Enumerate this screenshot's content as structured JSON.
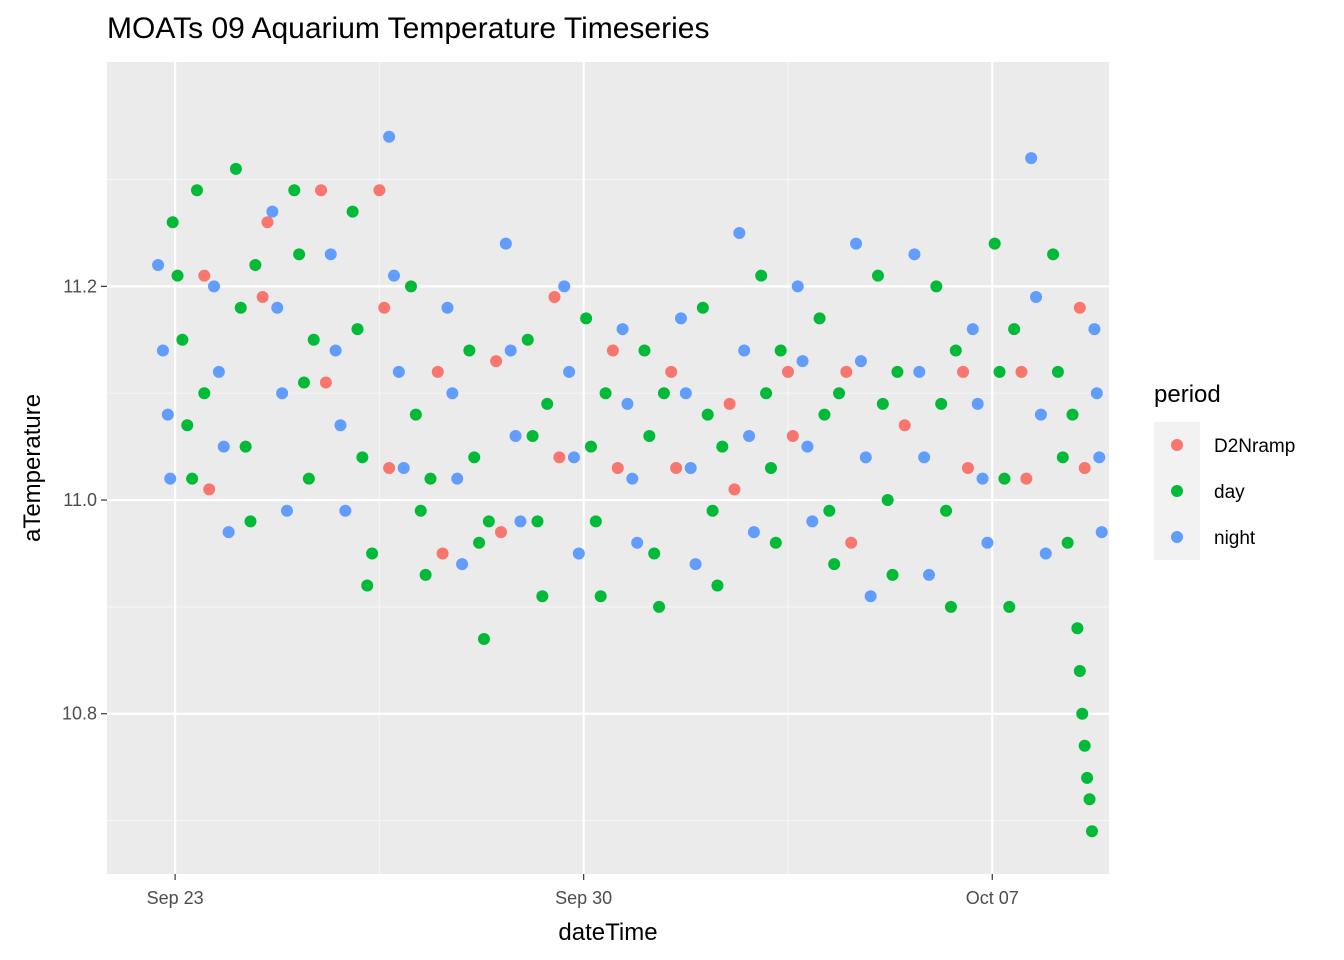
{
  "chart_data": {
    "type": "scatter",
    "title": "MOATs 09 Aquarium Temperature Timeseries",
    "xlabel": "dateTime",
    "ylabel": "aTemperature",
    "x_range": [
      "2021-09-21T20:00",
      "2021-10-09T00:00"
    ],
    "ylim": [
      10.65,
      11.41
    ],
    "x_ticks": [
      {
        "label": "Sep 23",
        "date": "2021-09-23"
      },
      {
        "label": "Sep 30",
        "date": "2021-09-30"
      },
      {
        "label": "Oct 07",
        "date": "2021-10-07"
      }
    ],
    "y_ticks": [
      10.8,
      11.0,
      11.2
    ],
    "grid": true,
    "legend": {
      "title": "period",
      "position": "right"
    },
    "series": [
      {
        "name": "D2Nramp",
        "color": "#F8766D",
        "points": [
          [
            "2021-09-23T12:00",
            11.21
          ],
          [
            "2021-09-23T14:00",
            11.01
          ],
          [
            "2021-09-24T12:00",
            11.19
          ],
          [
            "2021-09-24T14:00",
            11.26
          ],
          [
            "2021-09-25T12:00",
            11.29
          ],
          [
            "2021-09-25T14:00",
            11.11
          ],
          [
            "2021-09-26T12:00",
            11.29
          ],
          [
            "2021-09-26T14:00",
            11.18
          ],
          [
            "2021-09-26T16:00",
            11.03
          ],
          [
            "2021-09-27T12:00",
            11.12
          ],
          [
            "2021-09-27T14:00",
            10.95
          ],
          [
            "2021-09-28T12:00",
            11.13
          ],
          [
            "2021-09-28T14:00",
            10.97
          ],
          [
            "2021-09-29T12:00",
            11.19
          ],
          [
            "2021-09-29T14:00",
            11.04
          ],
          [
            "2021-09-30T12:00",
            11.14
          ],
          [
            "2021-09-30T14:00",
            11.03
          ],
          [
            "2021-10-01T12:00",
            11.12
          ],
          [
            "2021-10-01T14:00",
            11.03
          ],
          [
            "2021-10-02T12:00",
            11.09
          ],
          [
            "2021-10-02T14:00",
            11.01
          ],
          [
            "2021-10-03T12:00",
            11.12
          ],
          [
            "2021-10-03T14:00",
            11.06
          ],
          [
            "2021-10-04T12:00",
            11.12
          ],
          [
            "2021-10-04T14:00",
            10.96
          ],
          [
            "2021-10-05T12:00",
            11.07
          ],
          [
            "2021-10-06T12:00",
            11.12
          ],
          [
            "2021-10-06T14:00",
            11.03
          ],
          [
            "2021-10-07T12:00",
            11.12
          ],
          [
            "2021-10-07T14:00",
            11.02
          ],
          [
            "2021-10-08T12:00",
            11.18
          ],
          [
            "2021-10-08T14:00",
            11.03
          ]
        ]
      },
      {
        "name": "day",
        "color": "#00BA38",
        "points": [
          [
            "2021-09-22T23:00",
            11.26
          ],
          [
            "2021-09-23T01:00",
            11.21
          ],
          [
            "2021-09-23T03:00",
            11.15
          ],
          [
            "2021-09-23T05:00",
            11.07
          ],
          [
            "2021-09-23T07:00",
            11.02
          ],
          [
            "2021-09-23T09:00",
            11.29
          ],
          [
            "2021-09-23T12:00",
            11.1
          ],
          [
            "2021-09-24T01:00",
            11.31
          ],
          [
            "2021-09-24T03:00",
            11.18
          ],
          [
            "2021-09-24T05:00",
            11.05
          ],
          [
            "2021-09-24T07:00",
            10.98
          ],
          [
            "2021-09-24T09:00",
            11.22
          ],
          [
            "2021-09-25T01:00",
            11.29
          ],
          [
            "2021-09-25T03:00",
            11.23
          ],
          [
            "2021-09-25T05:00",
            11.11
          ],
          [
            "2021-09-25T07:00",
            11.02
          ],
          [
            "2021-09-25T09:00",
            11.15
          ],
          [
            "2021-09-26T01:00",
            11.27
          ],
          [
            "2021-09-26T03:00",
            11.16
          ],
          [
            "2021-09-26T05:00",
            11.04
          ],
          [
            "2021-09-26T07:00",
            10.92
          ],
          [
            "2021-09-26T09:00",
            10.95
          ],
          [
            "2021-09-27T01:00",
            11.2
          ],
          [
            "2021-09-27T03:00",
            11.08
          ],
          [
            "2021-09-27T05:00",
            10.99
          ],
          [
            "2021-09-27T07:00",
            10.93
          ],
          [
            "2021-09-27T09:00",
            11.02
          ],
          [
            "2021-09-28T01:00",
            11.14
          ],
          [
            "2021-09-28T03:00",
            11.04
          ],
          [
            "2021-09-28T05:00",
            10.96
          ],
          [
            "2021-09-28T07:00",
            10.87
          ],
          [
            "2021-09-28T09:00",
            10.98
          ],
          [
            "2021-09-29T01:00",
            11.15
          ],
          [
            "2021-09-29T03:00",
            11.06
          ],
          [
            "2021-09-29T05:00",
            10.98
          ],
          [
            "2021-09-29T07:00",
            10.91
          ],
          [
            "2021-09-29T09:00",
            11.09
          ],
          [
            "2021-09-30T01:00",
            11.17
          ],
          [
            "2021-09-30T03:00",
            11.05
          ],
          [
            "2021-09-30T05:00",
            10.98
          ],
          [
            "2021-09-30T07:00",
            10.91
          ],
          [
            "2021-09-30T09:00",
            11.1
          ],
          [
            "2021-10-01T01:00",
            11.14
          ],
          [
            "2021-10-01T03:00",
            11.06
          ],
          [
            "2021-10-01T05:00",
            10.95
          ],
          [
            "2021-10-01T07:00",
            10.9
          ],
          [
            "2021-10-01T09:00",
            11.1
          ],
          [
            "2021-10-02T01:00",
            11.18
          ],
          [
            "2021-10-02T03:00",
            11.08
          ],
          [
            "2021-10-02T05:00",
            10.99
          ],
          [
            "2021-10-02T07:00",
            10.92
          ],
          [
            "2021-10-02T09:00",
            11.05
          ],
          [
            "2021-10-03T01:00",
            11.21
          ],
          [
            "2021-10-03T03:00",
            11.1
          ],
          [
            "2021-10-03T05:00",
            11.03
          ],
          [
            "2021-10-03T07:00",
            10.96
          ],
          [
            "2021-10-03T09:00",
            11.14
          ],
          [
            "2021-10-04T01:00",
            11.17
          ],
          [
            "2021-10-04T03:00",
            11.08
          ],
          [
            "2021-10-04T05:00",
            10.99
          ],
          [
            "2021-10-04T07:00",
            10.94
          ],
          [
            "2021-10-04T09:00",
            11.1
          ],
          [
            "2021-10-05T01:00",
            11.21
          ],
          [
            "2021-10-05T03:00",
            11.09
          ],
          [
            "2021-10-05T05:00",
            11.0
          ],
          [
            "2021-10-05T07:00",
            10.93
          ],
          [
            "2021-10-05T09:00",
            11.12
          ],
          [
            "2021-10-06T01:00",
            11.2
          ],
          [
            "2021-10-06T03:00",
            11.09
          ],
          [
            "2021-10-06T05:00",
            10.99
          ],
          [
            "2021-10-06T07:00",
            10.9
          ],
          [
            "2021-10-06T09:00",
            11.14
          ],
          [
            "2021-10-07T01:00",
            11.24
          ],
          [
            "2021-10-07T03:00",
            11.12
          ],
          [
            "2021-10-07T05:00",
            11.02
          ],
          [
            "2021-10-07T07:00",
            10.9
          ],
          [
            "2021-10-07T09:00",
            11.16
          ],
          [
            "2021-10-08T01:00",
            11.23
          ],
          [
            "2021-10-08T03:00",
            11.12
          ],
          [
            "2021-10-08T05:00",
            11.04
          ],
          [
            "2021-10-08T07:00",
            10.96
          ],
          [
            "2021-10-08T09:00",
            11.08
          ],
          [
            "2021-10-08T11:00",
            10.88
          ],
          [
            "2021-10-08T12:00",
            10.84
          ],
          [
            "2021-10-08T13:00",
            10.8
          ],
          [
            "2021-10-08T14:00",
            10.77
          ],
          [
            "2021-10-08T15:00",
            10.74
          ],
          [
            "2021-10-08T16:00",
            10.72
          ],
          [
            "2021-10-08T17:00",
            10.69
          ]
        ]
      },
      {
        "name": "night",
        "color": "#619CFF",
        "points": [
          [
            "2021-09-22T17:00",
            11.22
          ],
          [
            "2021-09-22T19:00",
            11.14
          ],
          [
            "2021-09-22T21:00",
            11.08
          ],
          [
            "2021-09-22T22:00",
            11.02
          ],
          [
            "2021-09-23T16:00",
            11.2
          ],
          [
            "2021-09-23T18:00",
            11.12
          ],
          [
            "2021-09-23T20:00",
            11.05
          ],
          [
            "2021-09-23T22:00",
            10.97
          ],
          [
            "2021-09-24T16:00",
            11.27
          ],
          [
            "2021-09-24T18:00",
            11.18
          ],
          [
            "2021-09-24T20:00",
            11.1
          ],
          [
            "2021-09-24T22:00",
            10.99
          ],
          [
            "2021-09-25T16:00",
            11.23
          ],
          [
            "2021-09-25T18:00",
            11.14
          ],
          [
            "2021-09-25T20:00",
            11.07
          ],
          [
            "2021-09-25T22:00",
            10.99
          ],
          [
            "2021-09-26T16:00",
            11.34
          ],
          [
            "2021-09-26T18:00",
            11.21
          ],
          [
            "2021-09-26T20:00",
            11.12
          ],
          [
            "2021-09-26T22:00",
            11.03
          ],
          [
            "2021-09-27T16:00",
            11.18
          ],
          [
            "2021-09-27T18:00",
            11.1
          ],
          [
            "2021-09-27T20:00",
            11.02
          ],
          [
            "2021-09-27T22:00",
            10.94
          ],
          [
            "2021-09-28T16:00",
            11.24
          ],
          [
            "2021-09-28T18:00",
            11.14
          ],
          [
            "2021-09-28T20:00",
            11.06
          ],
          [
            "2021-09-28T22:00",
            10.98
          ],
          [
            "2021-09-29T16:00",
            11.2
          ],
          [
            "2021-09-29T18:00",
            11.12
          ],
          [
            "2021-09-29T20:00",
            11.04
          ],
          [
            "2021-09-29T22:00",
            10.95
          ],
          [
            "2021-09-30T16:00",
            11.16
          ],
          [
            "2021-09-30T18:00",
            11.09
          ],
          [
            "2021-09-30T20:00",
            11.02
          ],
          [
            "2021-09-30T22:00",
            10.96
          ],
          [
            "2021-10-01T16:00",
            11.17
          ],
          [
            "2021-10-01T18:00",
            11.1
          ],
          [
            "2021-10-01T20:00",
            11.03
          ],
          [
            "2021-10-01T22:00",
            10.94
          ],
          [
            "2021-10-02T16:00",
            11.25
          ],
          [
            "2021-10-02T18:00",
            11.14
          ],
          [
            "2021-10-02T20:00",
            11.06
          ],
          [
            "2021-10-02T22:00",
            10.97
          ],
          [
            "2021-10-03T16:00",
            11.2
          ],
          [
            "2021-10-03T18:00",
            11.13
          ],
          [
            "2021-10-03T20:00",
            11.05
          ],
          [
            "2021-10-03T22:00",
            10.98
          ],
          [
            "2021-10-04T16:00",
            11.24
          ],
          [
            "2021-10-04T18:00",
            11.13
          ],
          [
            "2021-10-04T20:00",
            11.04
          ],
          [
            "2021-10-04T22:00",
            10.91
          ],
          [
            "2021-10-05T16:00",
            11.23
          ],
          [
            "2021-10-05T18:00",
            11.12
          ],
          [
            "2021-10-05T20:00",
            11.04
          ],
          [
            "2021-10-05T22:00",
            10.93
          ],
          [
            "2021-10-06T16:00",
            11.16
          ],
          [
            "2021-10-06T18:00",
            11.09
          ],
          [
            "2021-10-06T20:00",
            11.02
          ],
          [
            "2021-10-06T22:00",
            10.96
          ],
          [
            "2021-10-07T16:00",
            11.32
          ],
          [
            "2021-10-07T18:00",
            11.19
          ],
          [
            "2021-10-07T20:00",
            11.08
          ],
          [
            "2021-10-07T22:00",
            10.95
          ],
          [
            "2021-10-08T18:00",
            11.16
          ],
          [
            "2021-10-08T19:00",
            11.1
          ],
          [
            "2021-10-08T20:00",
            11.04
          ],
          [
            "2021-10-08T21:00",
            10.97
          ]
        ]
      }
    ]
  }
}
